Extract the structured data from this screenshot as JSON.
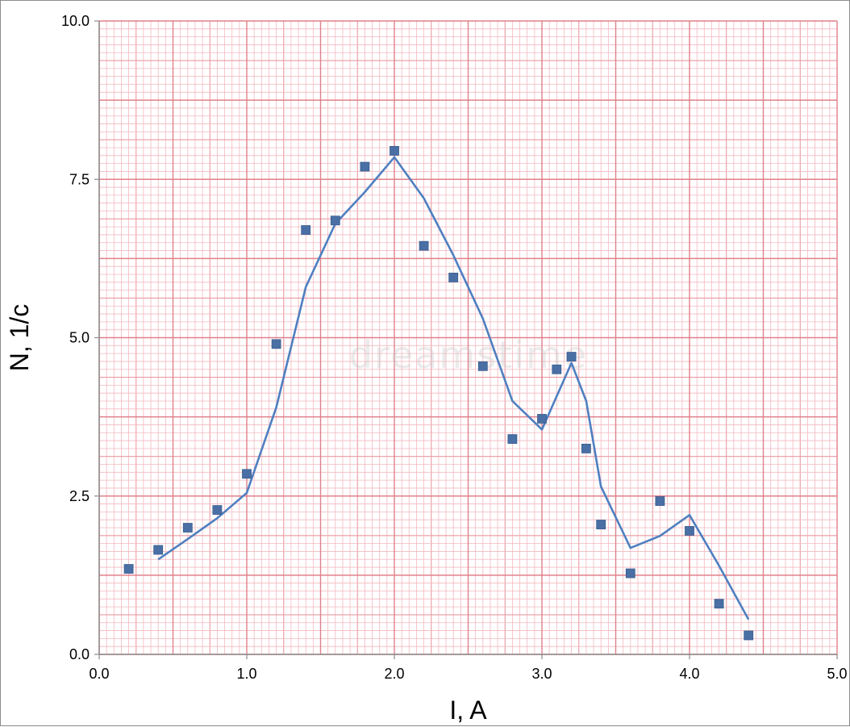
{
  "chart_data": {
    "type": "scatter",
    "title": "",
    "xlabel": "I, A",
    "ylabel": "N, 1/c",
    "xlim": [
      0.0,
      5.0
    ],
    "ylim": [
      0.0,
      10.0
    ],
    "x_ticks": [
      "0.0",
      "1.0",
      "2.0",
      "3.0",
      "4.0",
      "5.0"
    ],
    "y_ticks": [
      "0.0",
      "2.5",
      "5.0",
      "7.5",
      "10.0"
    ],
    "grid": true,
    "grid_color": "#e0808a",
    "minor_grid_color": "#f3b8bf",
    "series": [
      {
        "kind": "markers",
        "color": "#4a6fa5",
        "points": [
          [
            0.2,
            1.35
          ],
          [
            0.4,
            1.65
          ],
          [
            0.6,
            2.0
          ],
          [
            0.8,
            2.28
          ],
          [
            1.0,
            2.85
          ],
          [
            1.2,
            4.9
          ],
          [
            1.4,
            6.7
          ],
          [
            1.6,
            6.85
          ],
          [
            1.8,
            7.7
          ],
          [
            2.0,
            7.95
          ],
          [
            2.2,
            6.45
          ],
          [
            2.4,
            5.95
          ],
          [
            2.6,
            4.55
          ],
          [
            2.8,
            3.4
          ],
          [
            3.0,
            3.72
          ],
          [
            3.1,
            4.5
          ],
          [
            3.2,
            4.7
          ],
          [
            3.3,
            3.25
          ],
          [
            3.4,
            2.05
          ],
          [
            3.6,
            1.28
          ],
          [
            3.8,
            2.42
          ],
          [
            4.0,
            1.95
          ],
          [
            4.2,
            0.8
          ],
          [
            4.4,
            0.3
          ]
        ]
      },
      {
        "kind": "line",
        "color": "#4f7fc0",
        "points": [
          [
            0.4,
            1.5
          ],
          [
            0.6,
            1.82
          ],
          [
            0.8,
            2.15
          ],
          [
            1.0,
            2.55
          ],
          [
            1.2,
            3.9
          ],
          [
            1.4,
            5.8
          ],
          [
            1.6,
            6.8
          ],
          [
            1.8,
            7.3
          ],
          [
            2.0,
            7.85
          ],
          [
            2.2,
            7.2
          ],
          [
            2.4,
            6.3
          ],
          [
            2.6,
            5.3
          ],
          [
            2.8,
            4.0
          ],
          [
            3.0,
            3.55
          ],
          [
            3.2,
            4.6
          ],
          [
            3.3,
            4.0
          ],
          [
            3.4,
            2.65
          ],
          [
            3.6,
            1.68
          ],
          [
            3.8,
            1.87
          ],
          [
            4.0,
            2.2
          ],
          [
            4.2,
            1.4
          ],
          [
            4.4,
            0.55
          ]
        ]
      }
    ]
  }
}
